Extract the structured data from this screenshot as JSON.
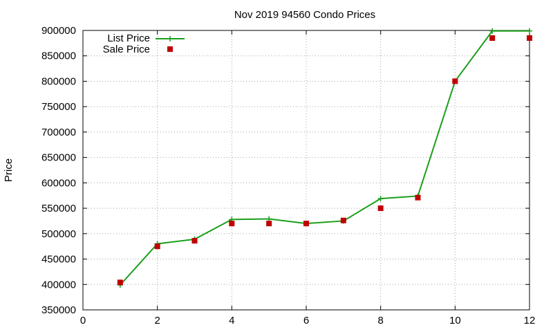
{
  "chart_data": {
    "type": "line",
    "title": "Nov 2019 94560 Condo Prices",
    "xlabel": "",
    "ylabel": "Price",
    "xlim": [
      0,
      12
    ],
    "ylim": [
      350000,
      900000
    ],
    "xticks": [
      0,
      2,
      4,
      6,
      8,
      10,
      12
    ],
    "yticks": [
      350000,
      400000,
      450000,
      500000,
      550000,
      600000,
      650000,
      700000,
      750000,
      800000,
      850000,
      900000
    ],
    "grid": true,
    "legend_position": "top-left",
    "x": [
      1,
      2,
      3,
      4,
      5,
      6,
      7,
      8,
      9,
      10,
      11,
      12
    ],
    "series": [
      {
        "name": "List Price",
        "style": "line-with-plus-markers",
        "color": "#1a9e1a",
        "values": [
          399000,
          480000,
          489000,
          528000,
          529000,
          520000,
          525000,
          569000,
          574000,
          800000,
          899000,
          899000
        ]
      },
      {
        "name": "Sale Price",
        "style": "square-markers",
        "color": "#c00000",
        "values": [
          404000,
          475000,
          486000,
          520000,
          520000,
          520000,
          526000,
          550000,
          571000,
          800000,
          885000,
          885000
        ]
      }
    ]
  }
}
